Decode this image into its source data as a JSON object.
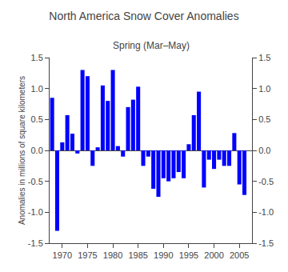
{
  "chart_data": {
    "type": "bar",
    "title": "North America Snow Cover Anomalies",
    "subtitle": "Spring (Mar–May)",
    "ylabel": "Anomalies in millions of square kilometers",
    "x": [
      1968,
      1969,
      1970,
      1971,
      1972,
      1973,
      1974,
      1975,
      1976,
      1977,
      1978,
      1979,
      1980,
      1981,
      1982,
      1983,
      1984,
      1985,
      1986,
      1987,
      1988,
      1989,
      1990,
      1991,
      1992,
      1993,
      1994,
      1995,
      1996,
      1997,
      1998,
      1999,
      2000,
      2001,
      2002,
      2003,
      2004,
      2005,
      2006
    ],
    "values": [
      0.85,
      -1.3,
      0.13,
      0.57,
      0.27,
      -0.05,
      1.3,
      1.2,
      -0.25,
      0.05,
      1.05,
      0.8,
      1.3,
      0.07,
      -0.1,
      0.7,
      0.82,
      1.03,
      -0.25,
      -0.1,
      -0.62,
      -0.75,
      -0.45,
      -0.5,
      -0.45,
      -0.35,
      -0.45,
      0.1,
      0.57,
      0.95,
      -0.6,
      -0.15,
      -0.3,
      -0.15,
      -0.25,
      -0.25,
      0.28,
      -0.55,
      -0.72
    ],
    "color": "#0000ff",
    "xlim": [
      1967.5,
      2007.5
    ],
    "xticks": [
      1970,
      1975,
      1980,
      1985,
      1990,
      1995,
      2000,
      2005
    ],
    "ylim": [
      -1.5,
      1.5
    ],
    "yticks": [
      -1.5,
      {
        "value": -1.0,
        "label": "-1.0"
      },
      -0.5,
      {
        "value": 0.0,
        "label": "0.0"
      },
      0.5,
      {
        "value": 1.0,
        "label": "1.0"
      },
      1.5
    ],
    "y2lim": [
      -1.5,
      1.5
    ],
    "y2ticks": [
      -1.5,
      {
        "value": -1.0,
        "label": "-1.0"
      },
      -0.5,
      {
        "value": 0.0,
        "label": "0.0"
      },
      0.5,
      {
        "value": 1.0,
        "label": "1.0"
      },
      1.5
    ],
    "grid": false
  }
}
